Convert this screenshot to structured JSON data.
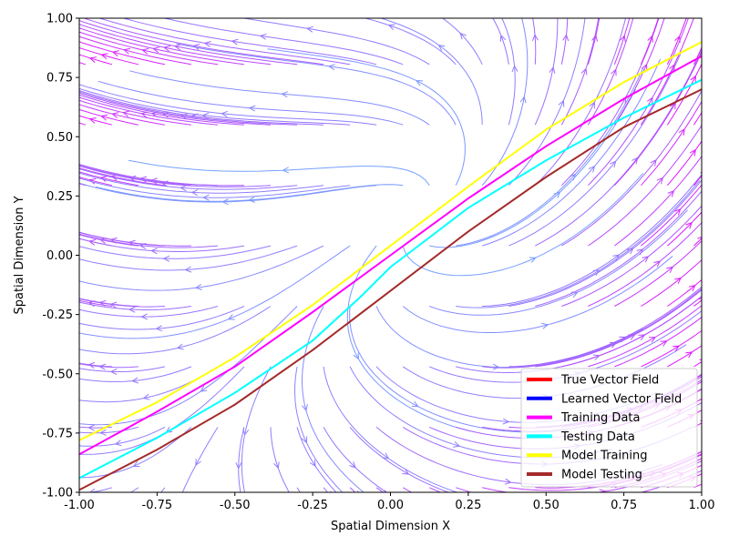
{
  "chart_data": {
    "type": "streamplot",
    "title": "",
    "xlabel": "Spatial Dimension X",
    "ylabel": "Spatial Dimension Y",
    "xlim": [
      -1.0,
      1.0
    ],
    "ylim": [
      -1.0,
      1.0
    ],
    "xticks": [
      "-1.00",
      "-0.75",
      "-0.50",
      "-0.25",
      "0.00",
      "0.25",
      "0.50",
      "0.75",
      "1.00"
    ],
    "yticks": [
      "-1.00",
      "-0.75",
      "-0.50",
      "-0.25",
      "0.00",
      "0.25",
      "0.50",
      "0.75",
      "1.00"
    ],
    "grid": false,
    "legend_position": "lower right",
    "stream_color_range": [
      "#6fa8ff",
      "#e216ff"
    ],
    "legend": [
      {
        "label": "True Vector Field",
        "color": "#ff0000"
      },
      {
        "label": "Learned Vector Field",
        "color": "#0000ff"
      },
      {
        "label": "Training Data",
        "color": "#ff00ff"
      },
      {
        "label": "Testing Data",
        "color": "#00ffff"
      },
      {
        "label": "Model Training",
        "color": "#ffff00"
      },
      {
        "label": "Model Testing",
        "color": "#a52a2a"
      }
    ],
    "series": [
      {
        "name": "Training Data",
        "color": "#ff00ff",
        "x": [
          -1.0,
          -0.75,
          -0.5,
          -0.25,
          0.0,
          0.25,
          0.5,
          0.75,
          1.0
        ],
        "y": [
          -0.84,
          -0.66,
          -0.47,
          -0.24,
          0.0,
          0.24,
          0.46,
          0.66,
          0.84
        ]
      },
      {
        "name": "Testing Data",
        "color": "#00ffff",
        "x": [
          -1.0,
          -0.75,
          -0.5,
          -0.25,
          -0.1,
          0.0,
          0.1,
          0.25,
          0.5,
          0.75,
          1.0
        ],
        "y": [
          -0.94,
          -0.77,
          -0.58,
          -0.36,
          -0.18,
          -0.05,
          0.05,
          0.2,
          0.4,
          0.58,
          0.74
        ]
      },
      {
        "name": "Model Training",
        "color": "#ffff00",
        "x": [
          -1.0,
          -0.75,
          -0.5,
          -0.25,
          0.0,
          0.25,
          0.5,
          0.75,
          1.0
        ],
        "y": [
          -0.78,
          -0.62,
          -0.43,
          -0.21,
          0.04,
          0.29,
          0.53,
          0.73,
          0.9
        ]
      },
      {
        "name": "Model Testing",
        "color": "#a52a2a",
        "x": [
          -1.0,
          -0.75,
          -0.5,
          -0.25,
          0.0,
          0.25,
          0.5,
          0.75,
          1.0
        ],
        "y": [
          -0.99,
          -0.82,
          -0.63,
          -0.4,
          -0.15,
          0.1,
          0.33,
          0.54,
          0.7
        ]
      }
    ]
  }
}
